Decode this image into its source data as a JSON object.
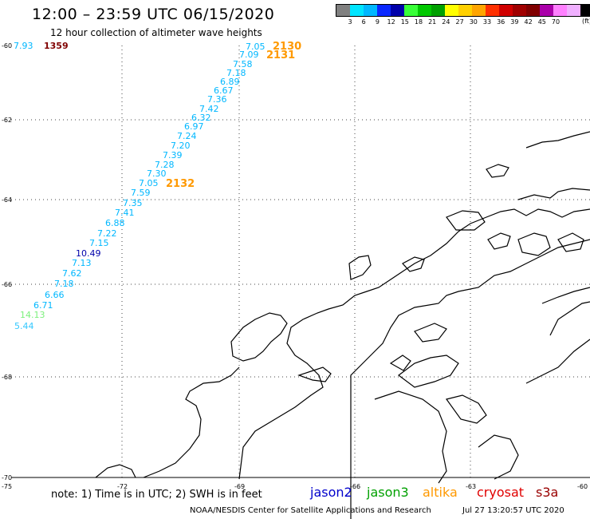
{
  "header": {
    "title": "12:00 – 23:59 UTC 06/15/2020",
    "subtitle": "12 hour collection of altimeter wave heights"
  },
  "legend": {
    "colors": [
      "#808080",
      "#00e5ff",
      "#00b7ff",
      "#0a28ff",
      "#0000aa",
      "#38ff38",
      "#00c800",
      "#00a000",
      "#ffff00",
      "#ffd000",
      "#ffa500",
      "#ff3000",
      "#d00000",
      "#a00000",
      "#800000",
      "#aa00aa",
      "#ff80ff",
      "#f0b0ff",
      "#000000"
    ],
    "labels": [
      "3",
      "6",
      "9",
      "12",
      "15",
      "18",
      "21",
      "24",
      "27",
      "30",
      "33",
      "36",
      "39",
      "42",
      "45",
      "70"
    ],
    "unit": "(ft)"
  },
  "axes": {
    "x_ticks": [
      "-75",
      "-72",
      "-69",
      "-66",
      "-63",
      "-60"
    ],
    "y_ticks": [
      "-60",
      "-62",
      "-64",
      "-66",
      "-68",
      "-70"
    ]
  },
  "observations": [
    {
      "value": "7.93",
      "color": "#00b7ff"
    },
    {
      "value": "1359",
      "color": "#800000"
    },
    {
      "value": "7.05",
      "color": "#00b7ff"
    },
    {
      "value": "7.09",
      "color": "#00b7ff"
    },
    {
      "value": "7.58",
      "color": "#00b7ff"
    },
    {
      "value": "7.18",
      "color": "#00b7ff"
    },
    {
      "value": "6.89",
      "color": "#00b7ff"
    },
    {
      "value": "6.67",
      "color": "#00b7ff"
    },
    {
      "value": "7.36",
      "color": "#00b7ff"
    },
    {
      "value": "7.42",
      "color": "#00b7ff"
    },
    {
      "value": "6.32",
      "color": "#00b7ff"
    },
    {
      "value": "6.97",
      "color": "#00b7ff"
    },
    {
      "value": "7.24",
      "color": "#00b7ff"
    },
    {
      "value": "7.20",
      "color": "#00b7ff"
    },
    {
      "value": "7.39",
      "color": "#00b7ff"
    },
    {
      "value": "7.28",
      "color": "#00b7ff"
    },
    {
      "value": "7.30",
      "color": "#00b7ff"
    },
    {
      "value": "7.05",
      "color": "#00b7ff"
    },
    {
      "value": "7.59",
      "color": "#00b7ff"
    },
    {
      "value": "7.35",
      "color": "#00b7ff"
    },
    {
      "value": "7.41",
      "color": "#00b7ff"
    },
    {
      "value": "6.88",
      "color": "#00b7ff"
    },
    {
      "value": "7.22",
      "color": "#00b7ff"
    },
    {
      "value": "7.15",
      "color": "#00b7ff"
    },
    {
      "value": "10.49",
      "color": "#0000aa"
    },
    {
      "value": "7.13",
      "color": "#00b7ff"
    },
    {
      "value": "7.62",
      "color": "#00b7ff"
    },
    {
      "value": "7.18",
      "color": "#00b7ff"
    },
    {
      "value": "6.66",
      "color": "#00b7ff"
    },
    {
      "value": "6.71",
      "color": "#00b7ff"
    },
    {
      "value": "14.13",
      "color": "#7cf07c"
    },
    {
      "value": "5.44",
      "color": "#33c8ff"
    }
  ],
  "pass_labels": [
    {
      "value": "2130",
      "color": "#ff9900"
    },
    {
      "value": "2131",
      "color": "#ff9900"
    },
    {
      "value": "2132",
      "color": "#ff9900"
    }
  ],
  "footer": {
    "note": "note:  1) Time is in UTC;  2) SWH is in feet",
    "satellites": [
      {
        "name": "jason2",
        "color": "#0000cc"
      },
      {
        "name": "jason3",
        "color": "#00a000"
      },
      {
        "name": "altika",
        "color": "#ff9900"
      },
      {
        "name": "cryosat",
        "color": "#e00000"
      },
      {
        "name": "s3a",
        "color": "#990000"
      }
    ],
    "credit": "NOAA/NESDIS Center for Satellite Applications and Research",
    "timestamp": "Jul 27 13:20:57 UTC 2020"
  }
}
